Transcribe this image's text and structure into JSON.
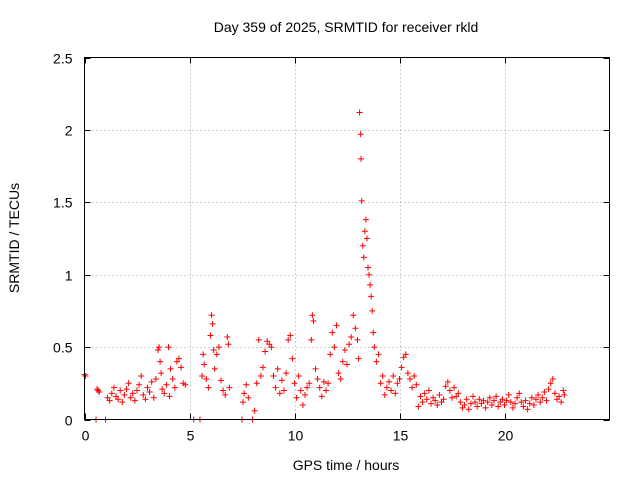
{
  "chart_data": {
    "type": "scatter",
    "title": "Day 359 of 2025, SRMTID for receiver rkld",
    "xlabel": "GPS time / hours",
    "ylabel": "SRMTID / TECUs",
    "xlim": [
      0,
      25
    ],
    "ylim": [
      0,
      2.5
    ],
    "x_ticks": [
      0,
      5,
      10,
      15,
      20
    ],
    "x_tick_labels": [
      "0",
      "5",
      "10",
      "15",
      "20"
    ],
    "y_ticks": [
      0,
      0.5,
      1,
      1.5,
      2,
      2.5
    ],
    "y_tick_labels": [
      "0",
      "0.5",
      "1",
      "1.5",
      "2",
      "2.5"
    ],
    "grid": true,
    "marker": "+",
    "color": "#ff0000",
    "series": [
      {
        "name": "SRMTID",
        "points": [
          [
            0.0,
            0.31
          ],
          [
            0.05,
            0.3
          ],
          [
            0.55,
            0.0
          ],
          [
            0.6,
            0.21
          ],
          [
            0.65,
            0.2
          ],
          [
            0.7,
            0.19
          ],
          [
            1.0,
            0.0
          ],
          [
            1.1,
            0.15
          ],
          [
            1.2,
            0.13
          ],
          [
            1.3,
            0.18
          ],
          [
            1.4,
            0.22
          ],
          [
            1.5,
            0.16
          ],
          [
            1.6,
            0.14
          ],
          [
            1.7,
            0.2
          ],
          [
            1.8,
            0.12
          ],
          [
            1.9,
            0.17
          ],
          [
            2.0,
            0.21
          ],
          [
            2.1,
            0.25
          ],
          [
            2.2,
            0.15
          ],
          [
            2.3,
            0.18
          ],
          [
            2.4,
            0.13
          ],
          [
            2.5,
            0.2
          ],
          [
            2.6,
            0.24
          ],
          [
            2.7,
            0.3
          ],
          [
            2.8,
            0.17
          ],
          [
            2.9,
            0.14
          ],
          [
            3.0,
            0.22
          ],
          [
            3.1,
            0.19
          ],
          [
            3.2,
            0.26
          ],
          [
            3.3,
            0.15
          ],
          [
            3.4,
            0.28
          ],
          [
            3.5,
            0.48
          ],
          [
            3.55,
            0.5
          ],
          [
            3.6,
            0.4
          ],
          [
            3.65,
            0.32
          ],
          [
            3.7,
            0.21
          ],
          [
            3.8,
            0.18
          ],
          [
            3.9,
            0.24
          ],
          [
            4.0,
            0.5
          ],
          [
            4.05,
            0.16
          ],
          [
            4.1,
            0.35
          ],
          [
            4.2,
            0.28
          ],
          [
            4.3,
            0.22
          ],
          [
            4.4,
            0.4
          ],
          [
            4.5,
            0.42
          ],
          [
            4.6,
            0.36
          ],
          [
            4.7,
            0.25
          ],
          [
            4.8,
            0.24
          ],
          [
            5.2,
            0.0
          ],
          [
            5.5,
            0.0
          ],
          [
            5.6,
            0.3
          ],
          [
            5.65,
            0.45
          ],
          [
            5.7,
            0.38
          ],
          [
            5.8,
            0.28
          ],
          [
            5.9,
            0.22
          ],
          [
            6.0,
            0.58
          ],
          [
            6.05,
            0.72
          ],
          [
            6.1,
            0.66
          ],
          [
            6.15,
            0.48
          ],
          [
            6.2,
            0.35
          ],
          [
            6.3,
            0.45
          ],
          [
            6.4,
            0.5
          ],
          [
            6.5,
            0.27
          ],
          [
            6.6,
            0.2
          ],
          [
            6.7,
            0.17
          ],
          [
            6.8,
            0.57
          ],
          [
            6.85,
            0.52
          ],
          [
            6.9,
            0.22
          ],
          [
            7.5,
            0.0
          ],
          [
            7.55,
            0.12
          ],
          [
            7.6,
            0.18
          ],
          [
            7.7,
            0.24
          ],
          [
            7.8,
            0.15
          ],
          [
            8.0,
            0.0
          ],
          [
            8.1,
            0.06
          ],
          [
            8.2,
            0.25
          ],
          [
            8.3,
            0.55
          ],
          [
            8.4,
            0.3
          ],
          [
            8.5,
            0.36
          ],
          [
            8.6,
            0.47
          ],
          [
            8.7,
            0.54
          ],
          [
            8.8,
            0.52
          ],
          [
            8.9,
            0.5
          ],
          [
            9.0,
            0.3
          ],
          [
            9.1,
            0.22
          ],
          [
            9.2,
            0.35
          ],
          [
            9.3,
            0.18
          ],
          [
            9.4,
            0.27
          ],
          [
            9.5,
            0.2
          ],
          [
            9.6,
            0.32
          ],
          [
            9.7,
            0.55
          ],
          [
            9.8,
            0.58
          ],
          [
            9.9,
            0.42
          ],
          [
            10.0,
            0.25
          ],
          [
            10.1,
            0.15
          ],
          [
            10.2,
            0.3
          ],
          [
            10.3,
            0.2
          ],
          [
            10.4,
            0.1
          ],
          [
            10.5,
            0.17
          ],
          [
            10.6,
            0.22
          ],
          [
            10.7,
            0.25
          ],
          [
            10.8,
            0.55
          ],
          [
            10.85,
            0.72
          ],
          [
            10.9,
            0.68
          ],
          [
            11.0,
            0.35
          ],
          [
            11.1,
            0.28
          ],
          [
            11.2,
            0.22
          ],
          [
            11.3,
            0.16
          ],
          [
            11.4,
            0.26
          ],
          [
            11.5,
            0.2
          ],
          [
            11.6,
            0.25
          ],
          [
            11.7,
            0.45
          ],
          [
            11.8,
            0.6
          ],
          [
            11.9,
            0.5
          ],
          [
            12.0,
            0.65
          ],
          [
            12.1,
            0.32
          ],
          [
            12.2,
            0.28
          ],
          [
            12.3,
            0.4
          ],
          [
            12.4,
            0.48
          ],
          [
            12.5,
            0.38
          ],
          [
            12.6,
            0.52
          ],
          [
            12.7,
            0.57
          ],
          [
            12.8,
            0.72
          ],
          [
            12.9,
            0.63
          ],
          [
            13.0,
            0.55
          ],
          [
            13.05,
            0.42
          ],
          [
            13.1,
            2.12
          ],
          [
            13.15,
            1.97
          ],
          [
            13.17,
            1.8
          ],
          [
            13.2,
            1.51
          ],
          [
            13.25,
            1.2
          ],
          [
            13.3,
            1.12
          ],
          [
            13.35,
            1.3
          ],
          [
            13.4,
            1.38
          ],
          [
            13.45,
            1.25
          ],
          [
            13.5,
            1.05
          ],
          [
            13.55,
            1.0
          ],
          [
            13.6,
            0.93
          ],
          [
            13.65,
            0.85
          ],
          [
            13.7,
            0.75
          ],
          [
            13.75,
            0.6
          ],
          [
            13.8,
            0.5
          ],
          [
            13.9,
            0.4
          ],
          [
            14.0,
            0.45
          ],
          [
            14.1,
            0.25
          ],
          [
            14.2,
            0.3
          ],
          [
            14.3,
            0.17
          ],
          [
            14.4,
            0.22
          ],
          [
            14.5,
            0.26
          ],
          [
            14.6,
            0.2
          ],
          [
            14.7,
            0.3
          ],
          [
            14.8,
            0.18
          ],
          [
            14.9,
            0.25
          ],
          [
            15.0,
            0.28
          ],
          [
            15.1,
            0.36
          ],
          [
            15.2,
            0.43
          ],
          [
            15.3,
            0.45
          ],
          [
            15.4,
            0.32
          ],
          [
            15.5,
            0.28
          ],
          [
            15.6,
            0.22
          ],
          [
            15.7,
            0.3
          ],
          [
            15.8,
            0.24
          ],
          [
            15.9,
            0.09
          ],
          [
            16.0,
            0.16
          ],
          [
            16.1,
            0.12
          ],
          [
            16.2,
            0.18
          ],
          [
            16.3,
            0.14
          ],
          [
            16.4,
            0.2
          ],
          [
            16.5,
            0.11
          ],
          [
            16.6,
            0.15
          ],
          [
            16.7,
            0.13
          ],
          [
            16.8,
            0.1
          ],
          [
            16.9,
            0.17
          ],
          [
            17.0,
            0.12
          ],
          [
            17.1,
            0.14
          ],
          [
            17.2,
            0.23
          ],
          [
            17.3,
            0.26
          ],
          [
            17.4,
            0.2
          ],
          [
            17.5,
            0.15
          ],
          [
            17.6,
            0.22
          ],
          [
            17.7,
            0.16
          ],
          [
            17.8,
            0.18
          ],
          [
            17.9,
            0.12
          ],
          [
            18.0,
            0.08
          ],
          [
            18.1,
            0.1
          ],
          [
            18.2,
            0.14
          ],
          [
            18.3,
            0.07
          ],
          [
            18.4,
            0.11
          ],
          [
            18.5,
            0.16
          ],
          [
            18.6,
            0.12
          ],
          [
            18.7,
            0.09
          ],
          [
            18.8,
            0.14
          ],
          [
            18.9,
            0.11
          ],
          [
            19.0,
            0.13
          ],
          [
            19.1,
            0.08
          ],
          [
            19.2,
            0.12
          ],
          [
            19.3,
            0.15
          ],
          [
            19.4,
            0.1
          ],
          [
            19.5,
            0.13
          ],
          [
            19.6,
            0.16
          ],
          [
            19.7,
            0.09
          ],
          [
            19.8,
            0.12
          ],
          [
            19.9,
            0.14
          ],
          [
            20.0,
            0.1
          ],
          [
            20.1,
            0.13
          ],
          [
            20.2,
            0.17
          ],
          [
            20.3,
            0.12
          ],
          [
            20.4,
            0.08
          ],
          [
            20.5,
            0.11
          ],
          [
            20.6,
            0.15
          ],
          [
            20.7,
            0.18
          ],
          [
            20.8,
            0.12
          ],
          [
            20.9,
            0.09
          ],
          [
            21.0,
            0.13
          ],
          [
            21.1,
            0.07
          ],
          [
            21.2,
            0.11
          ],
          [
            21.3,
            0.15
          ],
          [
            21.4,
            0.1
          ],
          [
            21.5,
            0.14
          ],
          [
            21.6,
            0.17
          ],
          [
            21.7,
            0.12
          ],
          [
            21.8,
            0.15
          ],
          [
            21.9,
            0.19
          ],
          [
            22.0,
            0.13
          ],
          [
            22.1,
            0.21
          ],
          [
            22.2,
            0.25
          ],
          [
            22.3,
            0.28
          ],
          [
            22.4,
            0.18
          ],
          [
            22.5,
            0.14
          ],
          [
            22.6,
            0.16
          ],
          [
            22.7,
            0.12
          ],
          [
            22.8,
            0.2
          ],
          [
            22.85,
            0.17
          ]
        ]
      }
    ]
  }
}
